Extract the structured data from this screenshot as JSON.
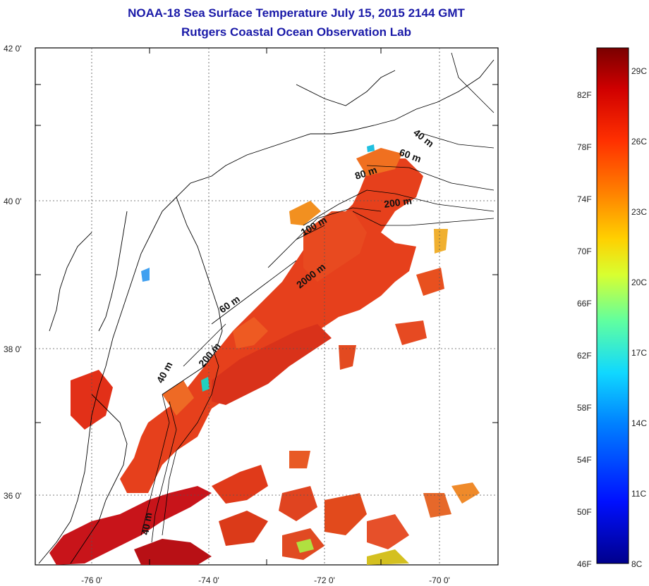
{
  "header": {
    "title": "NOAA-18 Sea Surface Temperature July 15, 2015 2144 GMT",
    "subtitle": "Rutgers Coastal Ocean Observation Lab"
  },
  "map": {
    "lat_labels": [
      "42 0'",
      "40 0'",
      "38 0'",
      "36 0'"
    ],
    "lon_labels": [
      "-76 0'",
      "-74 0'",
      "-72 0'",
      "-70 0'"
    ],
    "depth_labels": [
      "40 m",
      "60 m",
      "80 m",
      "200 m",
      "100 m",
      "2000 m",
      "60 m",
      "200 m",
      "40 m",
      "40 m"
    ],
    "grid": true
  },
  "colorbar": {
    "fahrenheit": [
      "82F",
      "78F",
      "74F",
      "70F",
      "66F",
      "62F",
      "58F",
      "54F",
      "50F",
      "46F"
    ],
    "celsius": [
      "29C",
      "26C",
      "23C",
      "20C",
      "17C",
      "14C",
      "11C",
      "8C"
    ],
    "colors": [
      "#7a0000",
      "#c00000",
      "#ff2000",
      "#ff7000",
      "#ffc800",
      "#e8ff20",
      "#80ff70",
      "#20ffd0",
      "#10c8ff",
      "#0068ff",
      "#0010ff",
      "#0000a0"
    ]
  },
  "colors": {
    "title": "#1a1aa8",
    "coast": "#000000",
    "warm": "#e03218",
    "hot": "#c8141a"
  }
}
